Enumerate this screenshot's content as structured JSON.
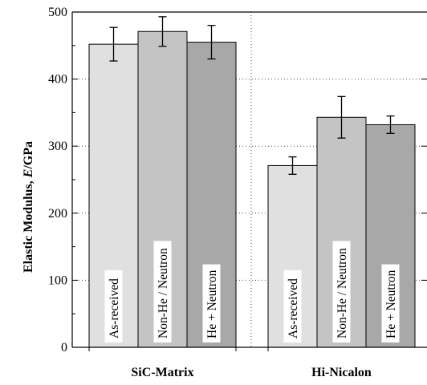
{
  "chart_data": {
    "type": "bar",
    "title": "",
    "ylabel_prefix": "Elastic Modulus,  ",
    "ylabel_var": "E",
    "ylabel_unit": "/GPa",
    "xlabel": "",
    "ylim": [
      0,
      500
    ],
    "yticks": [
      0,
      100,
      200,
      300,
      400,
      500
    ],
    "grid": "dotted",
    "groups": [
      {
        "name": "SiC-Matrix",
        "bars": [
          {
            "label": "As-received",
            "value": 452,
            "err": 25,
            "color": "#e0e0e0"
          },
          {
            "label": "Non-He / Neutron",
            "value": 471,
            "err": 22,
            "color": "#c4c4c4"
          },
          {
            "label": "He + Neutron",
            "value": 455,
            "err": 25,
            "color": "#a8a8a8"
          }
        ]
      },
      {
        "name": "Hi-Nicalon",
        "bars": [
          {
            "label": "As-received",
            "value": 271,
            "err": 13,
            "color": "#e0e0e0"
          },
          {
            "label": "Non-He / Neutron",
            "value": 343,
            "err": 31,
            "color": "#c4c4c4"
          },
          {
            "label": "He + Neutron",
            "value": 332,
            "err": 13,
            "color": "#a8a8a8"
          }
        ]
      }
    ]
  }
}
